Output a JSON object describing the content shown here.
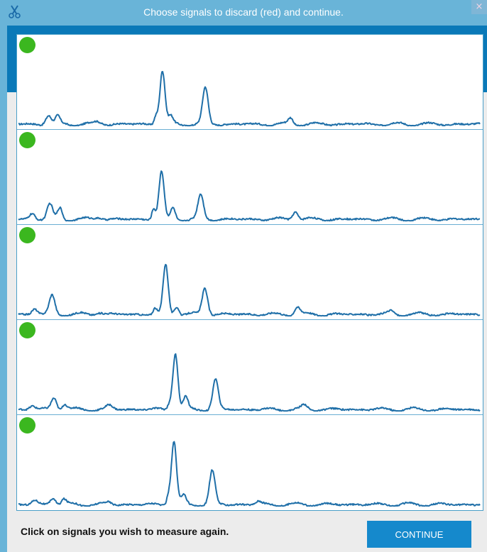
{
  "window": {
    "title": "Choose signals to discard (red) and continue.",
    "close_glyph": "×",
    "app_icon": "scissors-icon"
  },
  "colors": {
    "titlebar": "#69b4d8",
    "accent": "#0a79b8",
    "signal_line": "#1f6fa8",
    "keep_status": "#3bb71f",
    "discard_status": "#e02020",
    "button": "#1589cc"
  },
  "signals": [
    {
      "status": "keep",
      "peaks": [
        {
          "x": 0.065,
          "h": 0.12,
          "w": 0.006
        },
        {
          "x": 0.085,
          "h": 0.1,
          "w": 0.005
        },
        {
          "x": 0.172,
          "h": 0.03,
          "w": 0.008
        },
        {
          "x": 0.298,
          "h": 0.12,
          "w": 0.004
        },
        {
          "x": 0.312,
          "h": 0.72,
          "w": 0.0055
        },
        {
          "x": 0.33,
          "h": 0.1,
          "w": 0.005
        },
        {
          "x": 0.405,
          "h": 0.48,
          "w": 0.006
        },
        {
          "x": 0.59,
          "h": 0.08,
          "w": 0.005
        }
      ]
    },
    {
      "status": "keep",
      "peaks": [
        {
          "x": 0.03,
          "h": 0.08,
          "w": 0.006
        },
        {
          "x": 0.068,
          "h": 0.2,
          "w": 0.006
        },
        {
          "x": 0.09,
          "h": 0.15,
          "w": 0.005
        },
        {
          "x": 0.175,
          "h": 0.03,
          "w": 0.008
        },
        {
          "x": 0.293,
          "h": 0.15,
          "w": 0.004
        },
        {
          "x": 0.31,
          "h": 0.64,
          "w": 0.0055
        },
        {
          "x": 0.335,
          "h": 0.15,
          "w": 0.005
        },
        {
          "x": 0.395,
          "h": 0.32,
          "w": 0.006
        },
        {
          "x": 0.6,
          "h": 0.12,
          "w": 0.006
        }
      ]
    },
    {
      "status": "keep",
      "peaks": [
        {
          "x": 0.035,
          "h": 0.08,
          "w": 0.006
        },
        {
          "x": 0.073,
          "h": 0.25,
          "w": 0.006
        },
        {
          "x": 0.175,
          "h": 0.03,
          "w": 0.008
        },
        {
          "x": 0.296,
          "h": 0.08,
          "w": 0.004
        },
        {
          "x": 0.319,
          "h": 0.66,
          "w": 0.0055
        },
        {
          "x": 0.343,
          "h": 0.12,
          "w": 0.005
        },
        {
          "x": 0.404,
          "h": 0.36,
          "w": 0.006
        },
        {
          "x": 0.604,
          "h": 0.1,
          "w": 0.006
        },
        {
          "x": 0.808,
          "h": 0.04,
          "w": 0.006
        }
      ]
    },
    {
      "status": "keep",
      "peaks": [
        {
          "x": 0.03,
          "h": 0.05,
          "w": 0.006
        },
        {
          "x": 0.077,
          "h": 0.16,
          "w": 0.006
        },
        {
          "x": 0.1,
          "h": 0.08,
          "w": 0.005
        },
        {
          "x": 0.197,
          "h": 0.05,
          "w": 0.007
        },
        {
          "x": 0.327,
          "h": 0.08,
          "w": 0.004
        },
        {
          "x": 0.34,
          "h": 0.76,
          "w": 0.0055
        },
        {
          "x": 0.362,
          "h": 0.16,
          "w": 0.005
        },
        {
          "x": 0.427,
          "h": 0.4,
          "w": 0.006
        },
        {
          "x": 0.62,
          "h": 0.05,
          "w": 0.006
        }
      ]
    },
    {
      "status": "keep",
      "peaks": [
        {
          "x": 0.035,
          "h": 0.05,
          "w": 0.006
        },
        {
          "x": 0.075,
          "h": 0.1,
          "w": 0.006
        },
        {
          "x": 0.098,
          "h": 0.07,
          "w": 0.005
        },
        {
          "x": 0.195,
          "h": 0.03,
          "w": 0.007
        },
        {
          "x": 0.325,
          "h": 0.12,
          "w": 0.004
        },
        {
          "x": 0.337,
          "h": 0.85,
          "w": 0.0055
        },
        {
          "x": 0.358,
          "h": 0.12,
          "w": 0.005
        },
        {
          "x": 0.42,
          "h": 0.45,
          "w": 0.006
        },
        {
          "x": 0.52,
          "h": 0.04,
          "w": 0.006
        }
      ]
    }
  ],
  "footer": {
    "instruction": "Click on signals you wish to measure again.",
    "continue_label": "CONTINUE"
  }
}
